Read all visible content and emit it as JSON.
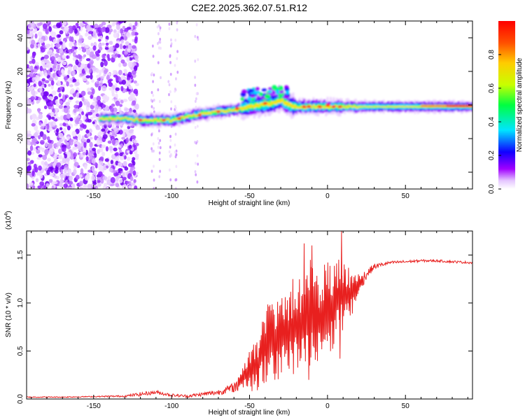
{
  "title": "C2E2.2025.362.07.51.R12",
  "chart_data": [
    {
      "type": "heatmap",
      "xlabel": "Height of straight line (km)",
      "ylabel": "Frequency (Hz)",
      "xlim": [
        -193,
        93
      ],
      "ylim": [
        -50,
        50
      ],
      "xticks": [
        -150,
        -100,
        -50,
        0,
        50
      ],
      "xtick_labels": [
        "-150",
        "-100",
        "-50",
        "0",
        "50"
      ],
      "yticks": [
        -40,
        -20,
        0,
        20,
        40
      ],
      "ytick_labels": [
        "-40",
        "-20",
        "0",
        "20",
        "40"
      ],
      "ridge_x": [
        -145,
        -130,
        -120,
        -110,
        -100,
        -90,
        -80,
        -70,
        -60,
        -50,
        -42,
        -35,
        -30,
        -25,
        -20,
        -10,
        0,
        10,
        30,
        50,
        70,
        93
      ],
      "ridge_y": [
        -8,
        -8,
        -9,
        -9,
        -9,
        -7,
        -5,
        -4,
        -3,
        -1,
        0,
        1,
        3,
        0,
        -1,
        -1,
        -1,
        -1,
        -1,
        -1,
        -1,
        -1
      ],
      "noise_region_x": [
        -193,
        -128
      ]
    },
    {
      "type": "line",
      "xlabel": "Height of straight line (km)",
      "ylabel": "SNR (10 * v/v)",
      "exponent_label": "(x10",
      "exponent_power": "4",
      "exponent_close": ")",
      "xlim": [
        -193,
        93
      ],
      "ylim": [
        0,
        1.75
      ],
      "xticks": [
        -150,
        -100,
        -50,
        0,
        50
      ],
      "xtick_labels": [
        "-150",
        "-100",
        "-50",
        "0",
        "50"
      ],
      "yticks": [
        0,
        0.5,
        1.0,
        1.5
      ],
      "ytick_labels": [
        "0.0",
        "0.5",
        "1.0",
        "1.5"
      ],
      "series": [
        {
          "name": "SNR",
          "color": "#e8201f",
          "x": [
            -193,
            -170,
            -150,
            -130,
            -120,
            -110,
            -100,
            -90,
            -80,
            -70,
            -60,
            -55,
            -50,
            -45,
            -40,
            -35,
            -30,
            -25,
            -20,
            -15,
            -10,
            -5,
            0,
            5,
            8,
            12,
            15,
            20,
            25,
            30,
            35,
            40,
            50,
            60,
            70,
            80,
            93
          ],
          "y": [
            0.02,
            0.02,
            0.025,
            0.03,
            0.05,
            0.07,
            0.04,
            0.03,
            0.05,
            0.07,
            0.12,
            0.2,
            0.3,
            0.35,
            0.55,
            0.6,
            0.65,
            0.7,
            0.75,
            0.8,
            0.9,
            0.85,
            0.9,
            1.0,
            1.1,
            1.05,
            1.1,
            1.2,
            1.3,
            1.38,
            1.4,
            1.42,
            1.43,
            1.44,
            1.44,
            1.43,
            1.42
          ],
          "noise_amplitude": [
            0.005,
            0.005,
            0.005,
            0.01,
            0.02,
            0.02,
            0.015,
            0.015,
            0.02,
            0.03,
            0.05,
            0.12,
            0.25,
            0.3,
            0.45,
            0.5,
            0.5,
            0.55,
            0.55,
            0.55,
            0.6,
            0.5,
            0.55,
            0.5,
            0.45,
            0.35,
            0.3,
            0.12,
            0.05,
            0.03,
            0.02,
            0.015,
            0.015,
            0.012,
            0.012,
            0.012,
            0.012
          ]
        }
      ]
    }
  ],
  "colorbar": {
    "label": "Normalized spectral amplitude",
    "range": [
      0,
      1
    ],
    "ticks": [
      0,
      0.2,
      0.4,
      0.6,
      0.8
    ],
    "tick_labels": [
      "0.0",
      "0.2",
      "0.4",
      "0.6",
      "0.8"
    ],
    "stops": [
      "#ffffff",
      "#e5c6ff",
      "#a000ff",
      "#1000ff",
      "#00e5ff",
      "#00ff40",
      "#c8ff00",
      "#ffcc00",
      "#ff5000",
      "#ff0000"
    ]
  }
}
